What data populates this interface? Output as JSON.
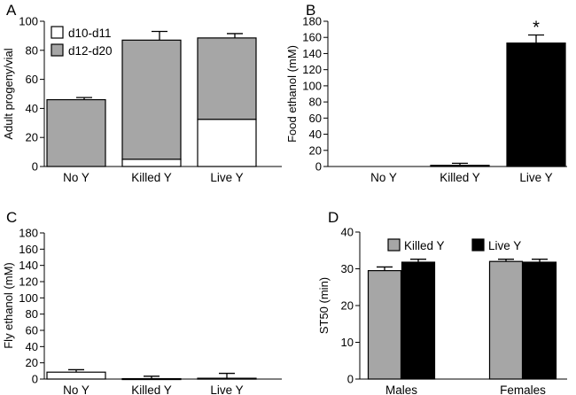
{
  "figure": {
    "panels": [
      "A",
      "B",
      "C",
      "D"
    ]
  },
  "chart_data": [
    {
      "panel": "A",
      "type": "bar",
      "stacked": true,
      "ylabel": "Adult progeny/vial",
      "ylim": [
        0,
        100
      ],
      "yticks": [
        0,
        20,
        40,
        60,
        80,
        100
      ],
      "categories": [
        "No Y",
        "Killed Y",
        "Live Y"
      ],
      "legend": "top-left",
      "series": [
        {
          "name": "d10-d11",
          "color": "#ffffff",
          "values": [
            0,
            5,
            32.5
          ],
          "errors": [
            0,
            0.5,
            6
          ]
        },
        {
          "name": "d12-d20",
          "color": "#a6a6a6",
          "values": [
            46,
            82,
            56
          ],
          "errors": [
            1.5,
            6,
            3
          ]
        }
      ]
    },
    {
      "panel": "B",
      "type": "bar",
      "ylabel": "Food ethanol  (mM)",
      "ylim": [
        0,
        180
      ],
      "yticks": [
        0,
        20,
        40,
        60,
        80,
        100,
        120,
        140,
        160,
        180
      ],
      "categories": [
        "No Y",
        "Killed Y",
        "Live Y"
      ],
      "series": [
        {
          "name": "Food ethanol",
          "colors": [
            "#000000",
            "#000000",
            "#000000"
          ],
          "values": [
            0,
            1.5,
            153
          ],
          "errors": [
            0,
            2.5,
            10
          ]
        }
      ],
      "annotations": [
        {
          "category": "Live Y",
          "text": "*"
        }
      ]
    },
    {
      "panel": "C",
      "type": "bar",
      "ylabel": "Fly ethanol  (mM)",
      "ylim": [
        0,
        180
      ],
      "yticks": [
        0,
        20,
        40,
        60,
        80,
        100,
        120,
        140,
        160,
        180
      ],
      "categories": [
        "No Y",
        "Killed Y",
        "Live Y"
      ],
      "series": [
        {
          "name": "Fly ethanol",
          "colors": [
            "#ffffff",
            "#a6a6a6",
            "#000000"
          ],
          "values": [
            8.5,
            0.5,
            1
          ],
          "errors": [
            3,
            3,
            6
          ]
        }
      ]
    },
    {
      "panel": "D",
      "type": "bar",
      "ylabel": "ST50  (min)",
      "ylim": [
        0,
        40
      ],
      "yticks": [
        0,
        10,
        20,
        30,
        40
      ],
      "categories": [
        "Males",
        "Females"
      ],
      "legend": "top",
      "series": [
        {
          "name": "Killed Y",
          "color": "#a6a6a6",
          "values": [
            29.5,
            32
          ],
          "errors": [
            1,
            0.6
          ]
        },
        {
          "name": "Live Y",
          "color": "#000000",
          "values": [
            31.8,
            31.8
          ],
          "errors": [
            0.8,
            0.8
          ]
        }
      ]
    }
  ]
}
